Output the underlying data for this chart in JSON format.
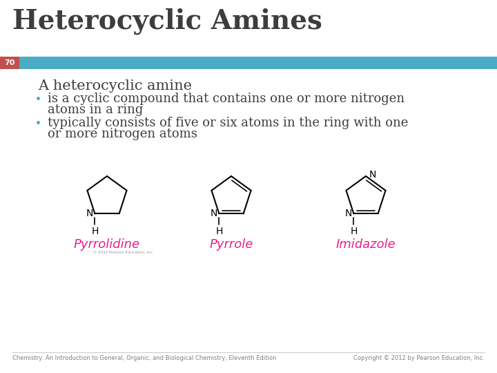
{
  "title": "Heterocyclic Amines",
  "slide_number": "70",
  "header_color": "#4BACC6",
  "slide_number_bg": "#C0504D",
  "slide_number_color": "#FFFFFF",
  "title_color": "#3D3D3D",
  "body_text_color": "#3D3D3D",
  "bullet_color": "#4BACC6",
  "subheading": "A heterocyclic amine",
  "bullet1_line1": "is a cyclic compound that contains one or more nitrogen",
  "bullet1_line2": "atoms in a ring",
  "bullet2_line1": "typically consists of five or six atoms in the ring with one",
  "bullet2_line2": "or more nitrogen atoms",
  "compound_names": [
    "Pyrrolidine",
    "Pyrrole",
    "Imidazole"
  ],
  "compound_name_color": "#E91E8C",
  "footer_left": "Chemistry: An Introduction to General, Organic, and Biological Chemistry, Eleventh Edition",
  "footer_right": "Copyright © 2012 by Pearson Education, Inc.",
  "footer_color": "#808080",
  "background_color": "#FFFFFF",
  "title_fontsize": 28,
  "subheading_fontsize": 15,
  "bullet_fontsize": 13,
  "compound_name_fontsize": 13
}
